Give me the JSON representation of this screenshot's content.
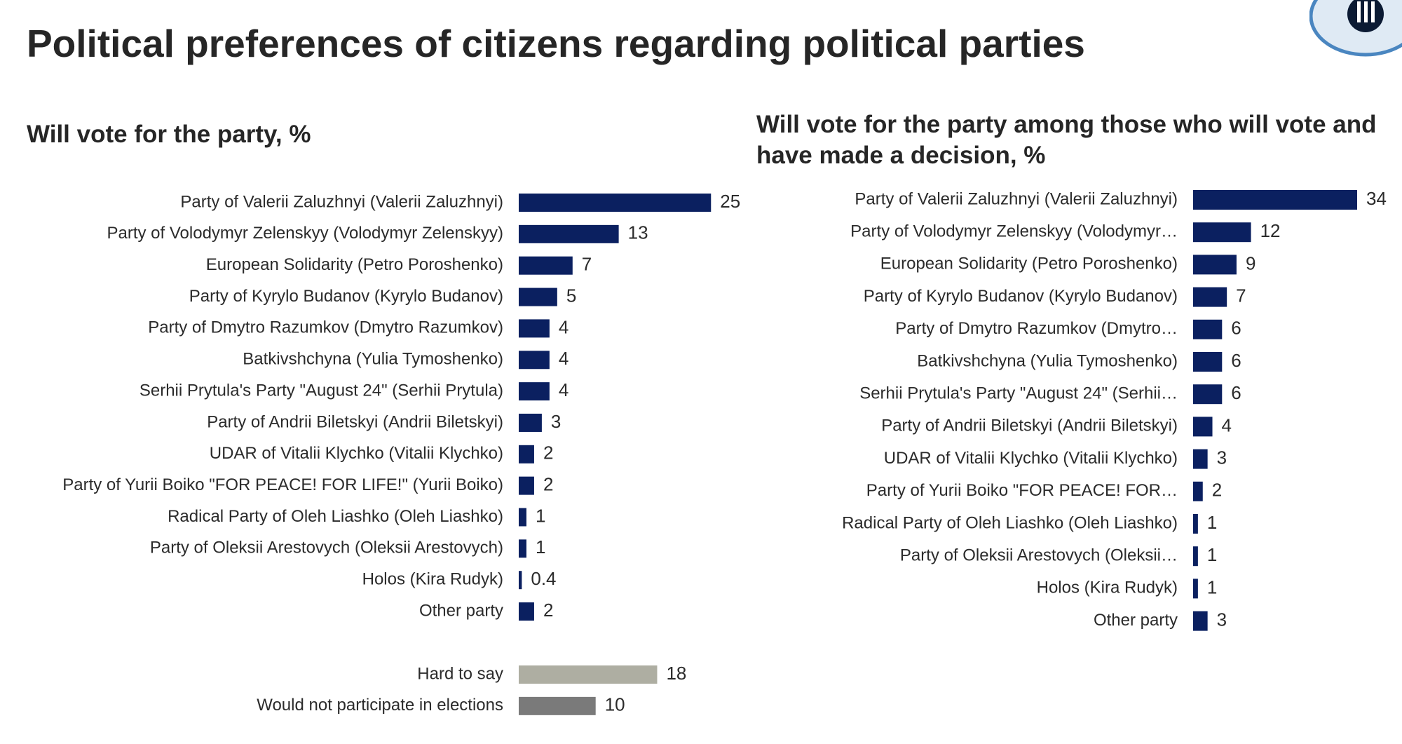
{
  "page": {
    "title": "Political preferences of citizens regarding political parties"
  },
  "logo": {
    "icon": "org-logo-icon"
  },
  "colors": {
    "primary": "#0b2060",
    "hard_to_say": "#aeaea2",
    "no_participation": "#7a7a7a",
    "text": "#2b2b2b"
  },
  "chart_data": [
    {
      "type": "bar",
      "orientation": "horizontal",
      "title": "Will vote for the party, %",
      "xlabel": "",
      "ylabel": "",
      "xlim": [
        0,
        34
      ],
      "grid": false,
      "categories": [
        "Party of Valerii Zaluzhnyi (Valerii Zaluzhnyi)",
        "Party of Volodymyr Zelenskyy (Volodymyr Zelenskyy)",
        "European Solidarity (Petro Poroshenko)",
        "Party of Kyrylo Budanov (Kyrylo Budanov)",
        "Party of Dmytro Razumkov (Dmytro Razumkov)",
        "Batkivshchyna (Yulia Tymoshenko)",
        "Serhii Prytula's Party \"August 24\" (Serhii Prytula)",
        "Party of Andrii Biletskyi (Andrii Biletskyi)",
        "UDAR of Vitalii Klychko (Vitalii Klychko)",
        "Party of Yurii Boiko \"FOR PEACE! FOR LIFE!\" (Yurii Boiko)",
        "Radical Party of Oleh Liashko (Oleh Liashko)",
        "Party of Oleksii Arestovych (Oleksii Arestovych)",
        "Holos (Kira Rudyk)",
        "Other party",
        "Hard to say",
        "Would not participate in elections"
      ],
      "values": [
        25,
        13,
        7,
        5,
        4,
        4,
        4,
        3,
        2,
        2,
        1,
        1,
        0.4,
        2,
        18,
        10
      ],
      "value_labels": [
        "25",
        "13",
        "7",
        "5",
        "4",
        "4",
        "4",
        "3",
        "2",
        "2",
        "1",
        "1",
        "0.4",
        "2",
        "18",
        "10"
      ],
      "bar_styles": [
        "primary",
        "primary",
        "primary",
        "primary",
        "primary",
        "primary",
        "primary",
        "primary",
        "primary",
        "primary",
        "primary",
        "primary",
        "primary",
        "primary",
        "hard_to_say",
        "no_participation"
      ]
    },
    {
      "type": "bar",
      "orientation": "horizontal",
      "title": "Will vote for the party among those who will vote and have made a decision, %",
      "xlabel": "",
      "ylabel": "",
      "xlim": [
        0,
        34
      ],
      "grid": false,
      "categories": [
        "Party of Valerii Zaluzhnyi (Valerii Zaluzhnyi)",
        "Party of Volodymyr Zelenskyy (Volodymyr…",
        "European Solidarity (Petro Poroshenko)",
        "Party of Kyrylo Budanov (Kyrylo Budanov)",
        "Party of Dmytro Razumkov (Dmytro…",
        "Batkivshchyna (Yulia Tymoshenko)",
        "Serhii Prytula's Party \"August 24\" (Serhii…",
        "Party of Andrii Biletskyi (Andrii Biletskyi)",
        "UDAR of Vitalii Klychko (Vitalii Klychko)",
        "Party of Yurii Boiko \"FOR PEACE! FOR…",
        "Radical Party of Oleh Liashko (Oleh Liashko)",
        "Party of Oleksii Arestovych (Oleksii…",
        "Holos (Kira Rudyk)",
        "Other party"
      ],
      "values": [
        34,
        12,
        9,
        7,
        6,
        6,
        6,
        4,
        3,
        2,
        1,
        1,
        1,
        3
      ],
      "value_labels": [
        "34",
        "12",
        "9",
        "7",
        "6",
        "6",
        "6",
        "4",
        "3",
        "2",
        "1",
        "1",
        "1",
        "3"
      ],
      "bar_styles": [
        "primary",
        "primary",
        "primary",
        "primary",
        "primary",
        "primary",
        "primary",
        "primary",
        "primary",
        "primary",
        "primary",
        "primary",
        "primary",
        "primary"
      ]
    }
  ]
}
